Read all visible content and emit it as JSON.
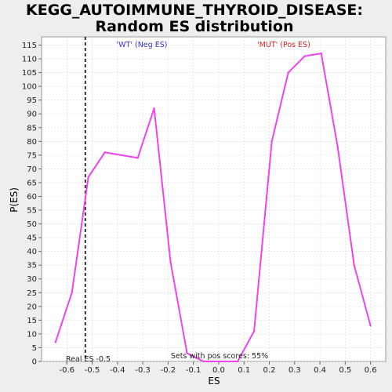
{
  "chart_data": {
    "type": "line",
    "title_line1": "KEGG_AUTOIMMUNE_THYROID_DISEASE:",
    "title_line2": "Random ES distribution",
    "xlabel": "ES",
    "ylabel": "P(ES)",
    "xlim": [
      -0.7,
      0.66
    ],
    "ylim": [
      0,
      118
    ],
    "x_ticks": [
      -0.6,
      -0.5,
      -0.4,
      -0.3,
      -0.2,
      -0.1,
      0.0,
      0.1,
      0.2,
      0.3,
      0.4,
      0.5,
      0.6
    ],
    "x_tick_labels": [
      "-0.6",
      "-0.5",
      "-0.4",
      "-0.3",
      "-0.2",
      "-0.1",
      "0.0",
      "0.1",
      "0.2",
      "0.3",
      "0.4",
      "0.5",
      "0.6"
    ],
    "y_ticks": [
      0,
      5,
      10,
      15,
      20,
      25,
      30,
      35,
      40,
      45,
      50,
      55,
      60,
      65,
      70,
      75,
      80,
      85,
      90,
      95,
      100,
      105,
      110,
      115
    ],
    "grid": true,
    "series": [
      {
        "color": "#ee44ee",
        "x": [
          -0.645,
          -0.58,
          -0.515,
          -0.45,
          -0.385,
          -0.32,
          -0.255,
          -0.19,
          -0.125,
          -0.06,
          0.005,
          0.075,
          0.14,
          0.21,
          0.275,
          0.34,
          0.405,
          0.47,
          0.535,
          0.6
        ],
        "y": [
          7,
          25,
          67,
          76,
          75,
          74,
          92,
          36,
          3,
          0,
          0,
          0,
          11,
          80,
          105,
          111,
          112,
          78,
          35,
          13
        ]
      }
    ],
    "real_es": -0.527,
    "real_es_label": "Real ES -0.5",
    "neg_label": "'WT' (Neg ES)",
    "pos_label": "'MUT' (Pos ES)",
    "pos_scores_label": "Sets with pos scores: 55%",
    "colors": {
      "neg": "#3333cc",
      "pos": "#dd2222",
      "line": "#ee44ee"
    }
  }
}
